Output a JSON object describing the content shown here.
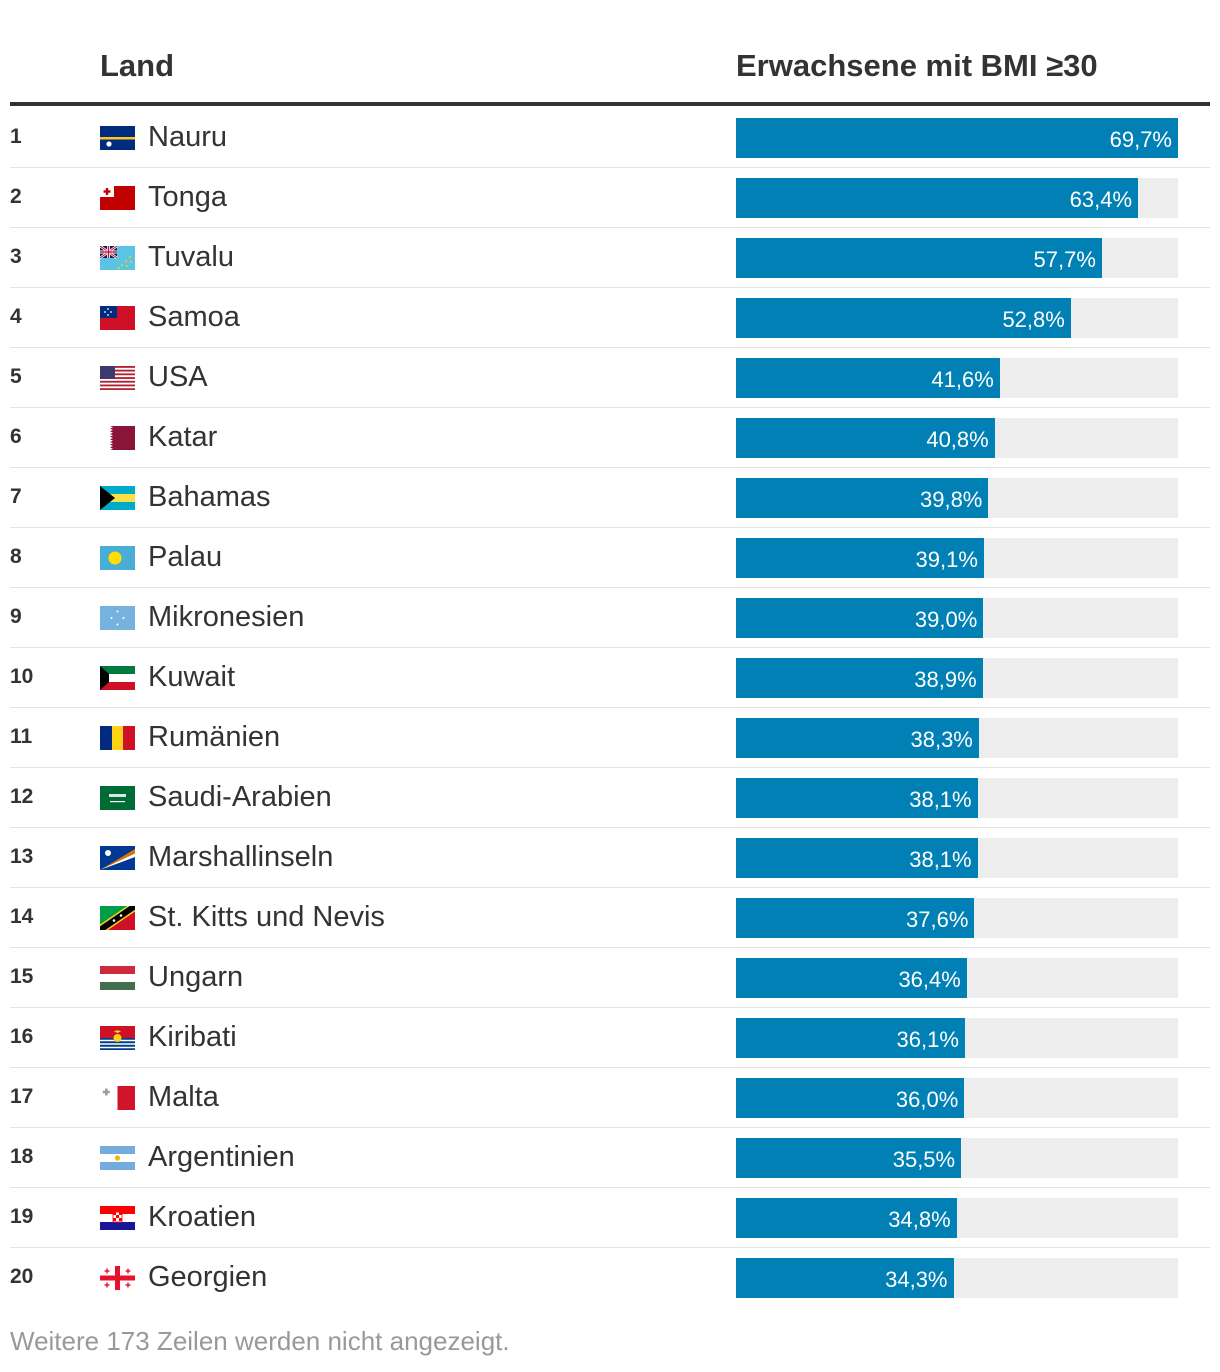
{
  "header": {
    "country_col": "Land",
    "value_col": "Erwachsene mit BMI ≥30"
  },
  "footer": "Weitere 173 Zeilen werden nicht angezeigt.",
  "colors": {
    "bar": "#0080b4",
    "track": "#ededed"
  },
  "chart_data": {
    "type": "bar",
    "orientation": "horizontal",
    "title": "Erwachsene mit BMI ≥30",
    "xlim": [
      0,
      69.7
    ],
    "unit": "%",
    "categories": [
      "Nauru",
      "Tonga",
      "Tuvalu",
      "Samoa",
      "USA",
      "Katar",
      "Bahamas",
      "Palau",
      "Mikronesien",
      "Kuwait",
      "Rumänien",
      "Saudi-Arabien",
      "Marshallinseln",
      "St. Kitts und Nevis",
      "Ungarn",
      "Kiribati",
      "Malta",
      "Argentinien",
      "Kroatien",
      "Georgien"
    ],
    "values": [
      69.7,
      63.4,
      57.7,
      52.8,
      41.6,
      40.8,
      39.8,
      39.1,
      39.0,
      38.9,
      38.3,
      38.1,
      38.1,
      37.6,
      36.4,
      36.1,
      36.0,
      35.5,
      34.8,
      34.3
    ]
  },
  "rows": [
    {
      "rank": "1",
      "country": "Nauru",
      "value": 69.7,
      "label": "69,7%",
      "flag": "nauru-flag-icon"
    },
    {
      "rank": "2",
      "country": "Tonga",
      "value": 63.4,
      "label": "63,4%",
      "flag": "tonga-flag-icon"
    },
    {
      "rank": "3",
      "country": "Tuvalu",
      "value": 57.7,
      "label": "57,7%",
      "flag": "tuvalu-flag-icon"
    },
    {
      "rank": "4",
      "country": "Samoa",
      "value": 52.8,
      "label": "52,8%",
      "flag": "samoa-flag-icon"
    },
    {
      "rank": "5",
      "country": "USA",
      "value": 41.6,
      "label": "41,6%",
      "flag": "usa-flag-icon"
    },
    {
      "rank": "6",
      "country": "Katar",
      "value": 40.8,
      "label": "40,8%",
      "flag": "katar-flag-icon"
    },
    {
      "rank": "7",
      "country": "Bahamas",
      "value": 39.8,
      "label": "39,8%",
      "flag": "bahamas-flag-icon"
    },
    {
      "rank": "8",
      "country": "Palau",
      "value": 39.1,
      "label": "39,1%",
      "flag": "palau-flag-icon"
    },
    {
      "rank": "9",
      "country": "Mikronesien",
      "value": 39.0,
      "label": "39,0%",
      "flag": "mikronesien-flag-icon"
    },
    {
      "rank": "10",
      "country": "Kuwait",
      "value": 38.9,
      "label": "38,9%",
      "flag": "kuwait-flag-icon"
    },
    {
      "rank": "11",
      "country": "Rumänien",
      "value": 38.3,
      "label": "38,3%",
      "flag": "rumaenien-flag-icon"
    },
    {
      "rank": "12",
      "country": "Saudi-Arabien",
      "value": 38.1,
      "label": "38,1%",
      "flag": "saudi-arabien-flag-icon"
    },
    {
      "rank": "13",
      "country": "Marshallinseln",
      "value": 38.1,
      "label": "38,1%",
      "flag": "marshallinseln-flag-icon"
    },
    {
      "rank": "14",
      "country": "St. Kitts und Nevis",
      "value": 37.6,
      "label": "37,6%",
      "flag": "st-kitts-und-nevis-flag-icon"
    },
    {
      "rank": "15",
      "country": "Ungarn",
      "value": 36.4,
      "label": "36,4%",
      "flag": "ungarn-flag-icon"
    },
    {
      "rank": "16",
      "country": "Kiribati",
      "value": 36.1,
      "label": "36,1%",
      "flag": "kiribati-flag-icon"
    },
    {
      "rank": "17",
      "country": "Malta",
      "value": 36.0,
      "label": "36,0%",
      "flag": "malta-flag-icon"
    },
    {
      "rank": "18",
      "country": "Argentinien",
      "value": 35.5,
      "label": "35,5%",
      "flag": "argentinien-flag-icon"
    },
    {
      "rank": "19",
      "country": "Kroatien",
      "value": 34.8,
      "label": "34,8%",
      "flag": "kroatien-flag-icon"
    },
    {
      "rank": "20",
      "country": "Georgien",
      "value": 34.3,
      "label": "34,3%",
      "flag": "georgien-flag-icon"
    }
  ]
}
